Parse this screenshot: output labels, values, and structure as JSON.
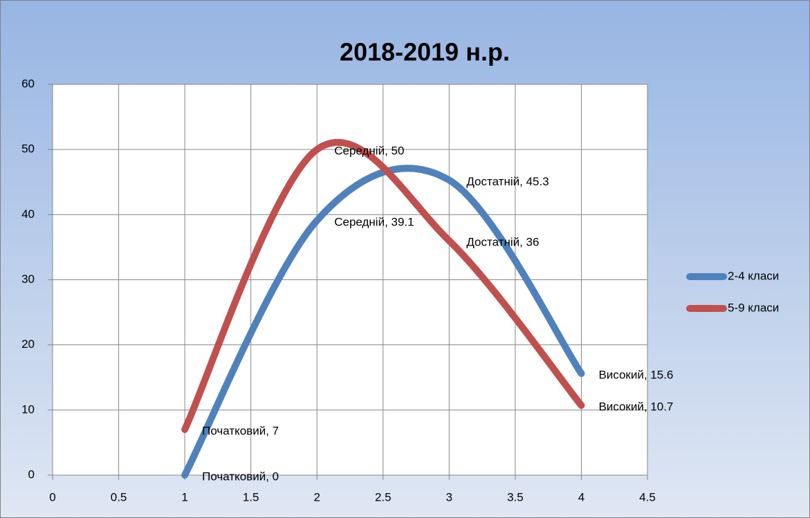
{
  "chart_data": {
    "type": "line",
    "smooth": true,
    "title": "2018-2019 н.р.",
    "x": [
      1,
      2,
      3,
      4
    ],
    "series": [
      {
        "name": "2-4 класи",
        "color": "#4f81bd",
        "values": [
          0,
          39.1,
          45.3,
          15.6
        ],
        "value_labels": [
          "Початковий, 0",
          "Середній, 39.1",
          "Достатній, 45.3",
          "Високий, 15.6"
        ]
      },
      {
        "name": "5-9 класи",
        "color": "#c0504d",
        "values": [
          7,
          50,
          36,
          10.7
        ],
        "value_labels": [
          "Початковий, 7",
          "Середній, 50",
          "Достатній, 36",
          "Високий, 10.7"
        ]
      }
    ],
    "xlim": [
      0,
      4.5
    ],
    "xticks": [
      0,
      0.5,
      1,
      1.5,
      2,
      2.5,
      3,
      3.5,
      4,
      4.5
    ],
    "ylim": [
      0,
      60
    ],
    "yticks": [
      0,
      10,
      20,
      30,
      40,
      50,
      60
    ],
    "grid": true,
    "legend": "right"
  }
}
